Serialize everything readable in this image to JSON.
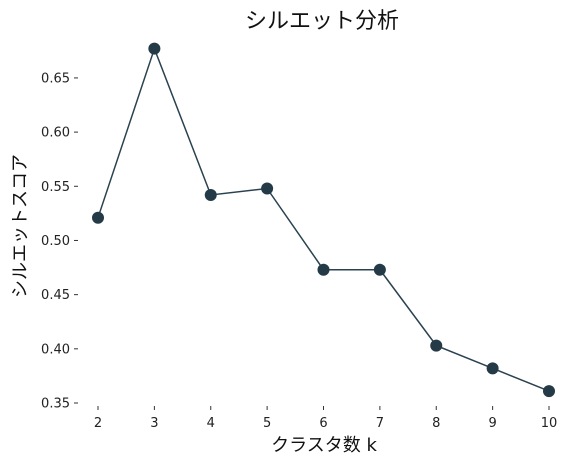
{
  "chart_data": {
    "type": "line",
    "title": "シルエット分析",
    "xlabel": "クラスタ数 k",
    "ylabel": "シルエットスコア",
    "x": [
      2,
      3,
      4,
      5,
      6,
      7,
      8,
      9,
      10
    ],
    "series": [
      {
        "values": [
          0.521,
          0.677,
          0.542,
          0.548,
          0.473,
          0.473,
          0.403,
          0.382,
          0.361
        ]
      }
    ],
    "xticks": [
      "2",
      "3",
      "4",
      "5",
      "6",
      "7",
      "8",
      "9",
      "10"
    ],
    "yticks": [
      "0.35",
      "0.40",
      "0.45",
      "0.50",
      "0.55",
      "0.60",
      "0.65"
    ],
    "ylim": [
      0.35,
      0.685
    ],
    "xlim": [
      2,
      10
    ],
    "grid": false,
    "colors": {
      "line": "#2a4250",
      "marker": "#243b47"
    }
  }
}
